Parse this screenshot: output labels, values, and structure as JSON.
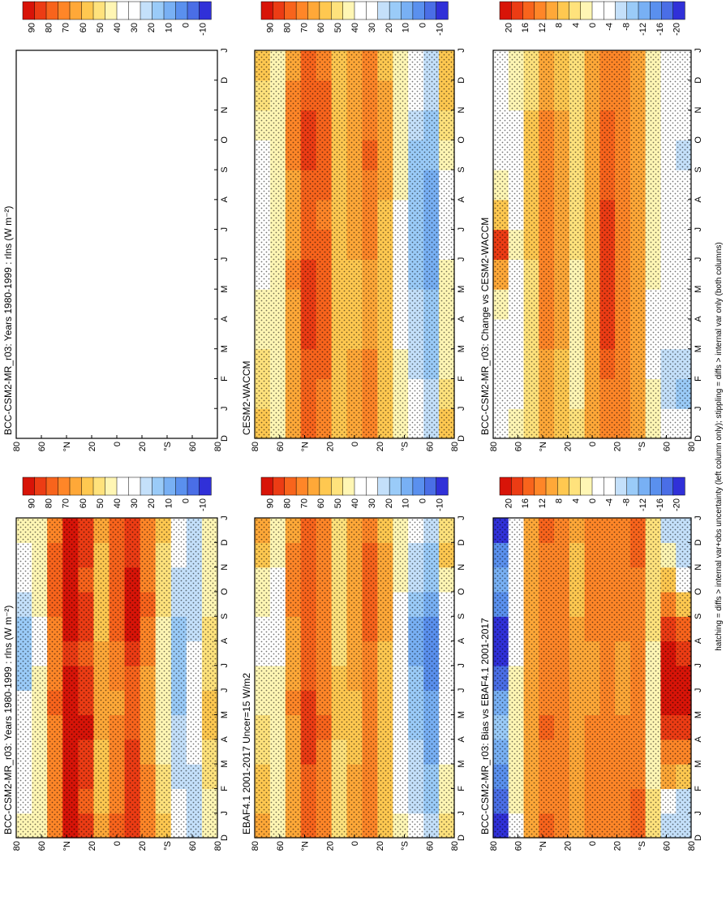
{
  "months": [
    "J",
    "F",
    "M",
    "A",
    "M",
    "J",
    "J",
    "A",
    "S",
    "O",
    "N",
    "D",
    "J"
  ],
  "month_axis_start": "D",
  "lat_ticks": [
    "80",
    "60",
    "°N",
    "20",
    "0",
    "20",
    "°S",
    "60",
    "80"
  ],
  "footnote": "hatching = diffs > internal var+obs uncertainty (left column only); stippling = diffs > internal var only (both columns)",
  "colors": {
    "field_scale": [
      "#3030d8",
      "#4a6ee6",
      "#5a90ee",
      "#78b0f4",
      "#9acbf8",
      "#c4e0fa",
      "#ffffff",
      "#ffffff",
      "#fff6b4",
      "#ffe27c",
      "#ffc850",
      "#ffa838",
      "#ff8628",
      "#f8641c",
      "#ec3c14",
      "#d81408"
    ],
    "diff_scale": [
      "#3030d8",
      "#4a6ee6",
      "#5a90ee",
      "#78b0f4",
      "#9acbf8",
      "#c4e0fa",
      "#ffffff",
      "#ffffff",
      "#fff6b4",
      "#ffe27c",
      "#ffc850",
      "#ffa838",
      "#ff8628",
      "#f8641c",
      "#ec3c14",
      "#d81408"
    ]
  },
  "colorbar_labels": {
    "field": [
      "90",
      "80",
      "70",
      "60",
      "50",
      "40",
      "30",
      "20",
      "10",
      "0",
      "-10"
    ],
    "diff": [
      "20",
      "16",
      "12",
      "8",
      "4",
      "0",
      "-4",
      "-8",
      "-12",
      "-16",
      "-20"
    ]
  },
  "chart_data": [
    {
      "type": "heatmap",
      "panel": "left-top",
      "title": "BCC-CSM2-MR_r03: Years 1980-1999 : rlns (W m⁻²)",
      "xlabel": "",
      "ylabel": "",
      "x": [
        "D",
        "J",
        "F",
        "M",
        "A",
        "M",
        "J",
        "J",
        "A",
        "S",
        "O",
        "N",
        "D",
        "J"
      ],
      "y": [
        "80",
        "60",
        "°N",
        "20",
        "0",
        "20",
        "°S",
        "60",
        "80"
      ],
      "value_range": [
        -10,
        90
      ],
      "value_rows_by_month": [
        [
          40,
          45,
          70,
          85,
          78,
          60,
          72,
          82,
          70,
          55,
          30,
          25,
          45
        ],
        [
          38,
          42,
          68,
          84,
          77,
          58,
          70,
          80,
          68,
          52,
          28,
          22,
          42
        ],
        [
          36,
          40,
          66,
          86,
          78,
          57,
          70,
          79,
          66,
          48,
          26,
          24,
          48
        ],
        [
          34,
          40,
          68,
          90,
          82,
          58,
          68,
          78,
          64,
          46,
          24,
          28,
          52
        ],
        [
          32,
          42,
          70,
          92,
          84,
          60,
          66,
          76,
          62,
          44,
          22,
          30,
          54
        ],
        [
          30,
          45,
          72,
          88,
          80,
          62,
          64,
          74,
          60,
          42,
          20,
          32,
          55
        ],
        [
          20,
          40,
          70,
          84,
          78,
          62,
          66,
          76,
          62,
          42,
          18,
          30,
          52
        ],
        [
          15,
          35,
          68,
          82,
          76,
          60,
          70,
          80,
          66,
          44,
          16,
          28,
          50
        ],
        [
          18,
          36,
          70,
          84,
          78,
          58,
          72,
          84,
          70,
          46,
          18,
          26,
          48
        ],
        [
          24,
          40,
          72,
          86,
          78,
          56,
          74,
          86,
          72,
          48,
          22,
          24,
          46
        ],
        [
          30,
          42,
          74,
          86,
          76,
          56,
          72,
          84,
          70,
          50,
          26,
          24,
          44
        ],
        [
          36,
          44,
          74,
          86,
          78,
          58,
          72,
          82,
          70,
          52,
          28,
          24,
          44
        ],
        [
          40,
          45,
          70,
          85,
          78,
          60,
          72,
          82,
          70,
          55,
          30,
          25,
          45
        ]
      ]
    },
    {
      "type": "heatmap",
      "panel": "right-top",
      "title": "BCC-CSM2-MR_r03: Years 1980-1999 : rlns (W m⁻²)",
      "xlabel": "",
      "ylabel": "",
      "x": [
        "D",
        "J",
        "F",
        "M",
        "A",
        "M",
        "J",
        "J",
        "A",
        "S",
        "O",
        "N",
        "D",
        "J"
      ],
      "y": [
        "80",
        "60",
        "°N",
        "20",
        "0",
        "20",
        "°S",
        "60",
        "80"
      ],
      "value_range": [
        -10,
        90
      ]
    },
    {
      "type": "heatmap",
      "panel": "left-middle",
      "title": "EBAF4.1 2001-2017 Uncer=15 W/m2",
      "xlabel": "",
      "ylabel": "",
      "x": [
        "D",
        "J",
        "F",
        "M",
        "A",
        "M",
        "J",
        "J",
        "A",
        "S",
        "O",
        "N",
        "D",
        "J"
      ],
      "y": [
        "80",
        "60",
        "°N",
        "20",
        "0",
        "20",
        "°S",
        "60",
        "80"
      ],
      "value_range": [
        -10,
        90
      ],
      "value_rows_by_month": [
        [
          60,
          40,
          62,
          72,
          66,
          52,
          62,
          70,
          58,
          40,
          30,
          22,
          50
        ],
        [
          58,
          40,
          60,
          72,
          66,
          50,
          60,
          68,
          56,
          38,
          26,
          18,
          44
        ],
        [
          56,
          40,
          60,
          74,
          68,
          50,
          60,
          68,
          56,
          36,
          24,
          16,
          40
        ],
        [
          52,
          40,
          62,
          78,
          70,
          52,
          58,
          66,
          54,
          34,
          22,
          14,
          38
        ],
        [
          48,
          40,
          64,
          80,
          72,
          54,
          58,
          66,
          54,
          34,
          20,
          12,
          36
        ],
        [
          44,
          40,
          66,
          78,
          70,
          54,
          58,
          66,
          54,
          34,
          18,
          10,
          34
        ],
        [
          40,
          40,
          64,
          74,
          68,
          54,
          60,
          68,
          56,
          34,
          16,
          8,
          32
        ],
        [
          38,
          38,
          62,
          72,
          66,
          52,
          62,
          70,
          58,
          34,
          14,
          6,
          30
        ],
        [
          38,
          38,
          64,
          74,
          68,
          50,
          62,
          72,
          60,
          36,
          14,
          8,
          32
        ],
        [
          40,
          38,
          66,
          76,
          68,
          50,
          64,
          74,
          62,
          38,
          18,
          12,
          38
        ],
        [
          46,
          38,
          68,
          76,
          68,
          50,
          64,
          72,
          60,
          40,
          22,
          16,
          46
        ],
        [
          54,
          40,
          66,
          74,
          68,
          52,
          64,
          72,
          60,
          40,
          26,
          20,
          56
        ],
        [
          60,
          40,
          62,
          72,
          66,
          52,
          62,
          70,
          58,
          40,
          30,
          22,
          50
        ]
      ]
    },
    {
      "type": "heatmap",
      "panel": "right-middle",
      "title": "CESM2-WACCM",
      "xlabel": "",
      "ylabel": "",
      "x": [
        "D",
        "J",
        "F",
        "M",
        "A",
        "M",
        "J",
        "J",
        "A",
        "S",
        "O",
        "N",
        "D",
        "J"
      ],
      "y": [
        "80",
        "60",
        "°N",
        "20",
        "0",
        "20",
        "°S",
        "60",
        "80"
      ],
      "value_range": [
        -10,
        90
      ],
      "value_rows_by_month": [
        [
          55,
          45,
          62,
          74,
          70,
          56,
          62,
          68,
          58,
          44,
          30,
          26,
          54
        ],
        [
          52,
          44,
          60,
          74,
          70,
          54,
          60,
          66,
          56,
          42,
          28,
          22,
          50
        ],
        [
          50,
          44,
          60,
          76,
          72,
          54,
          60,
          66,
          56,
          40,
          26,
          20,
          46
        ],
        [
          46,
          44,
          62,
          80,
          74,
          56,
          58,
          64,
          54,
          38,
          24,
          18,
          44
        ],
        [
          42,
          44,
          64,
          82,
          76,
          58,
          58,
          64,
          54,
          38,
          22,
          16,
          42
        ],
        [
          38,
          44,
          66,
          80,
          74,
          58,
          58,
          64,
          54,
          38,
          20,
          14,
          40
        ],
        [
          34,
          42,
          64,
          76,
          72,
          58,
          60,
          66,
          56,
          38,
          18,
          12,
          38
        ],
        [
          32,
          40,
          62,
          74,
          70,
          56,
          62,
          68,
          58,
          38,
          16,
          10,
          36
        ],
        [
          32,
          40,
          64,
          76,
          72,
          54,
          62,
          70,
          60,
          40,
          16,
          12,
          38
        ],
        [
          36,
          40,
          66,
          78,
          72,
          54,
          64,
          72,
          62,
          42,
          20,
          16,
          44
        ],
        [
          42,
          42,
          68,
          78,
          72,
          54,
          64,
          70,
          60,
          44,
          24,
          20,
          50
        ],
        [
          50,
          44,
          66,
          76,
          72,
          56,
          64,
          70,
          60,
          44,
          28,
          24,
          54
        ],
        [
          55,
          45,
          62,
          74,
          70,
          56,
          62,
          68,
          58,
          44,
          30,
          26,
          54
        ]
      ]
    },
    {
      "type": "heatmap",
      "panel": "left-bottom",
      "title": "BCC-CSM2-MR_r03: Bias vs EBAF4.1 2001-2017",
      "xlabel": "",
      "ylabel": "",
      "x": [
        "D",
        "J",
        "F",
        "M",
        "A",
        "M",
        "J",
        "J",
        "A",
        "S",
        "O",
        "N",
        "D",
        "J"
      ],
      "y": [
        "80",
        "60",
        "°N",
        "20",
        "0",
        "20",
        "°S",
        "60",
        "80"
      ],
      "value_range": [
        -20,
        20
      ],
      "value_rows_by_month": [
        [
          -18,
          -2,
          8,
          14,
          12,
          8,
          10,
          12,
          12,
          14,
          4,
          -6,
          -6
        ],
        [
          -16,
          0,
          8,
          12,
          12,
          8,
          10,
          12,
          12,
          14,
          4,
          -4,
          -6
        ],
        [
          -14,
          0,
          8,
          12,
          10,
          8,
          10,
          12,
          10,
          12,
          2,
          8,
          6
        ],
        [
          -12,
          0,
          8,
          12,
          12,
          8,
          10,
          12,
          10,
          12,
          2,
          12,
          12
        ],
        [
          -10,
          0,
          8,
          14,
          12,
          8,
          10,
          12,
          10,
          12,
          2,
          16,
          16
        ],
        [
          -12,
          2,
          8,
          12,
          12,
          8,
          8,
          10,
          8,
          10,
          2,
          20,
          18
        ],
        [
          -16,
          0,
          8,
          12,
          12,
          8,
          8,
          10,
          8,
          10,
          2,
          20,
          18
        ],
        [
          -20,
          -2,
          8,
          12,
          12,
          8,
          8,
          10,
          8,
          10,
          2,
          18,
          16
        ],
        [
          -18,
          -2,
          8,
          12,
          12,
          8,
          10,
          12,
          10,
          12,
          4,
          16,
          14
        ],
        [
          -14,
          -2,
          8,
          12,
          12,
          6,
          10,
          12,
          10,
          12,
          4,
          12,
          6
        ],
        [
          -12,
          -2,
          8,
          12,
          10,
          6,
          10,
          12,
          10,
          12,
          4,
          6,
          -4
        ],
        [
          -14,
          -2,
          8,
          12,
          10,
          6,
          10,
          12,
          12,
          14,
          4,
          0,
          -6
        ],
        [
          -18,
          -2,
          8,
          14,
          12,
          8,
          10,
          12,
          12,
          14,
          4,
          -6,
          -6
        ]
      ]
    },
    {
      "type": "heatmap",
      "panel": "right-bottom",
      "title": "BCC-CSM2-MR_r03: Change vs CESM2-WACCM",
      "xlabel": "",
      "ylabel": "",
      "x": [
        "D",
        "J",
        "F",
        "M",
        "A",
        "M",
        "J",
        "J",
        "A",
        "S",
        "O",
        "N",
        "D",
        "J"
      ],
      "y": [
        "80",
        "60",
        "°N",
        "20",
        "0",
        "20",
        "°S",
        "60",
        "80"
      ],
      "value_range": [
        -20,
        20
      ],
      "value_rows_by_month": [
        [
          -2,
          0,
          4,
          8,
          6,
          4,
          8,
          12,
          10,
          8,
          2,
          -4,
          -4
        ],
        [
          -2,
          -2,
          4,
          8,
          6,
          2,
          8,
          12,
          10,
          8,
          0,
          -6,
          -8
        ],
        [
          -2,
          -4,
          4,
          8,
          6,
          2,
          8,
          14,
          10,
          8,
          -2,
          -6,
          -6
        ],
        [
          -2,
          -4,
          4,
          10,
          8,
          2,
          8,
          16,
          12,
          8,
          -2,
          -4,
          -4
        ],
        [
          0,
          -4,
          4,
          12,
          8,
          2,
          8,
          16,
          12,
          8,
          -2,
          -4,
          -4
        ],
        [
          8,
          -2,
          4,
          12,
          8,
          2,
          8,
          16,
          12,
          8,
          0,
          -2,
          -2
        ],
        [
          16,
          2,
          6,
          10,
          8,
          4,
          8,
          16,
          12,
          8,
          0,
          -2,
          -2
        ],
        [
          6,
          -2,
          6,
          10,
          8,
          4,
          8,
          16,
          12,
          8,
          2,
          -2,
          -2
        ],
        [
          2,
          -4,
          6,
          10,
          8,
          4,
          8,
          14,
          12,
          8,
          2,
          -2,
          -4
        ],
        [
          -2,
          -4,
          6,
          10,
          8,
          4,
          8,
          14,
          12,
          8,
          2,
          -2,
          -6
        ],
        [
          -4,
          -2,
          6,
          10,
          8,
          4,
          8,
          14,
          12,
          8,
          2,
          -2,
          -4
        ],
        [
          -4,
          0,
          4,
          8,
          6,
          4,
          8,
          12,
          10,
          8,
          2,
          -2,
          -4
        ],
        [
          -2,
          0,
          4,
          8,
          6,
          4,
          8,
          12,
          10,
          8,
          2,
          -4,
          -4
        ]
      ]
    }
  ]
}
